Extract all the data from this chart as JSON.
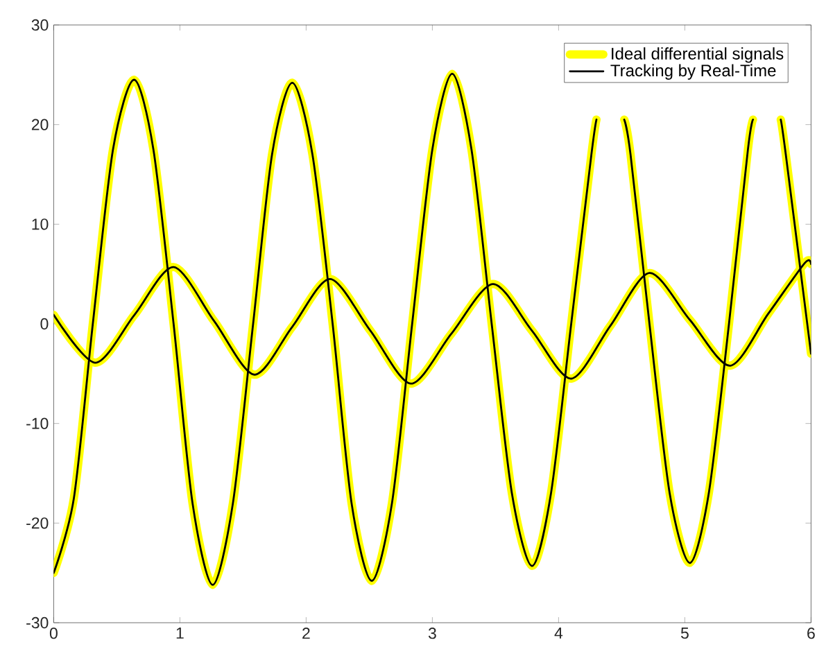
{
  "chart_data": {
    "type": "line",
    "xlim": [
      0,
      6
    ],
    "ylim": [
      -30,
      30
    ],
    "xticks": [
      0,
      1,
      2,
      3,
      4,
      5,
      6
    ],
    "yticks": [
      -30,
      -20,
      -10,
      0,
      10,
      20,
      30
    ],
    "grid": false,
    "legend": "top right",
    "marker": "none",
    "line_style": "solid",
    "series": [
      {
        "name": "Ideal  differential signals",
        "color": "#ffff00",
        "x": [
          0,
          0.16,
          0.31,
          0.47,
          0.637,
          0.79,
          0.95,
          1.1,
          1.26,
          1.42,
          1.58,
          1.73,
          1.89,
          2.05,
          2.21,
          2.36,
          2.52,
          2.68,
          2.84,
          3.0,
          3.157,
          3.31,
          3.47,
          3.63,
          3.79,
          3.94,
          4.1,
          4.26,
          4.3,
          4.41,
          4.52,
          4.57,
          4.72,
          4.88,
          5.04,
          5.19,
          5.35,
          5.5,
          5.54,
          5.65,
          5.76,
          5.8,
          6.0
        ],
        "values": [
          -25,
          -17.5,
          0,
          17.5,
          24.5,
          17.5,
          0,
          -18,
          -26.2,
          -18,
          0,
          17,
          24.2,
          17,
          0,
          -18,
          -25.8,
          -18,
          0,
          17.5,
          25.1,
          17.5,
          0,
          -17,
          -24.3,
          -17,
          0,
          17,
          20.5,
          null,
          20.5,
          17,
          0,
          -17,
          -24,
          -17,
          0,
          17.5,
          20.5,
          null,
          20.5,
          17,
          -3
        ]
      },
      {
        "color": "#ffff00",
        "x": [
          0,
          0.33,
          0.64,
          0.95,
          1.27,
          1.59,
          1.89,
          2.19,
          2.51,
          2.83,
          3.15,
          3.48,
          3.79,
          4.1,
          4.41,
          4.72,
          5.04,
          5.36,
          5.66,
          5.95,
          6.0
        ],
        "values": [
          0.9,
          -3.9,
          0.9,
          5.7,
          0.3,
          -5.1,
          -0.3,
          4.5,
          -0.7,
          -6,
          -1,
          4,
          -0.7,
          -5.5,
          -0.2,
          5.1,
          0.4,
          -4.2,
          1,
          6.1,
          6
        ]
      },
      {
        "name": "Tracking by Real-Time",
        "color": "#000000",
        "x": [
          0,
          0.16,
          0.31,
          0.47,
          0.637,
          0.79,
          0.95,
          1.1,
          1.26,
          1.42,
          1.58,
          1.73,
          1.89,
          2.05,
          2.21,
          2.36,
          2.52,
          2.68,
          2.84,
          3.0,
          3.157,
          3.31,
          3.47,
          3.63,
          3.79,
          3.94,
          4.1,
          4.26,
          4.3,
          4.41,
          4.52,
          4.57,
          4.72,
          4.88,
          5.04,
          5.19,
          5.35,
          5.5,
          5.54,
          5.65,
          5.76,
          5.8,
          6.0
        ],
        "values": [
          -25,
          -17.5,
          0,
          17.5,
          24.5,
          17.5,
          0,
          -18,
          -26.2,
          -18,
          0,
          17,
          24.2,
          17,
          0,
          -18,
          -25.8,
          -18,
          0,
          17.5,
          25.1,
          17.5,
          0,
          -17,
          -24.3,
          -17,
          0,
          17,
          20.5,
          null,
          20.5,
          17,
          0,
          -17,
          -24,
          -17,
          0,
          17.5,
          20.5,
          null,
          20.5,
          17,
          -3
        ]
      },
      {
        "color": "#000000",
        "x": [
          0,
          0.33,
          0.64,
          0.95,
          1.27,
          1.59,
          1.89,
          2.19,
          2.51,
          2.83,
          3.15,
          3.48,
          3.79,
          4.1,
          4.41,
          4.72,
          5.04,
          5.36,
          5.66,
          5.95,
          6.0
        ],
        "values": [
          0.9,
          -3.9,
          0.9,
          5.7,
          0.3,
          -5.1,
          -0.3,
          4.5,
          -0.7,
          -6,
          -1,
          4,
          -0.7,
          -5.5,
          -0.2,
          5.1,
          0.4,
          -4.2,
          1,
          6.1,
          6
        ]
      }
    ]
  }
}
